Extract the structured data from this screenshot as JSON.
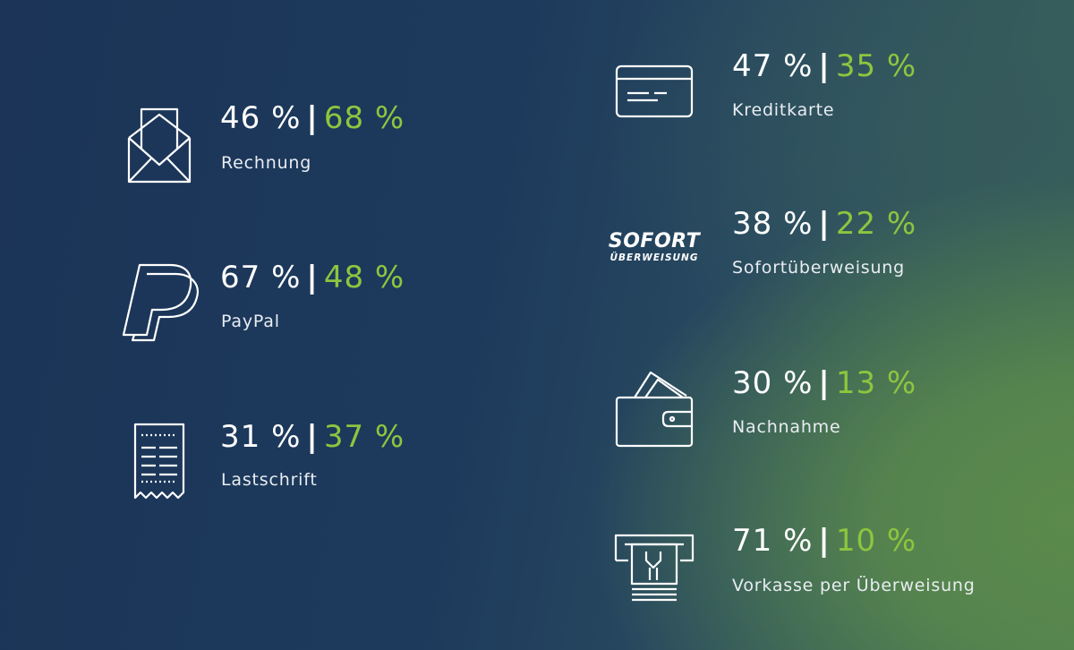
{
  "methods": [
    {
      "id": "rechnung",
      "first": "46 %",
      "second": "68 %",
      "separator": "|",
      "label": "Rechnung",
      "icon": "envelope-icon"
    },
    {
      "id": "paypal",
      "first": "67 %",
      "second": "48 %",
      "separator": "|",
      "label": "PayPal",
      "icon": "paypal-logo"
    },
    {
      "id": "lastschrift",
      "first": "31 %",
      "second": "37 %",
      "separator": "|",
      "label": "Lastschrift",
      "icon": "receipt-icon"
    },
    {
      "id": "kreditkarte",
      "first": "47 %",
      "second": "35 %",
      "separator": "|",
      "label": "Kreditkarte",
      "icon": "credit-card-icon"
    },
    {
      "id": "sofort",
      "first": "38 %",
      "second": "22 %",
      "separator": "|",
      "label": "Sofortüberweisung",
      "icon": "sofort-logo",
      "logo_text_1": "SOFORT",
      "logo_text_2": "ÜBERWEISUNG"
    },
    {
      "id": "nachnahme",
      "first": "30 %",
      "second": "13 %",
      "separator": "|",
      "label": "Nachnahme",
      "icon": "wallet-icon"
    },
    {
      "id": "vorkasse",
      "first": "71 %",
      "second": "10 %",
      "separator": "|",
      "label": "Vorkasse per Überweisung",
      "icon": "atm-icon"
    }
  ],
  "colors": {
    "white": "#ffffff",
    "accent": "#8cc63f",
    "bg_dark": "#1b3457",
    "bg_green": "#5b8a4c"
  }
}
